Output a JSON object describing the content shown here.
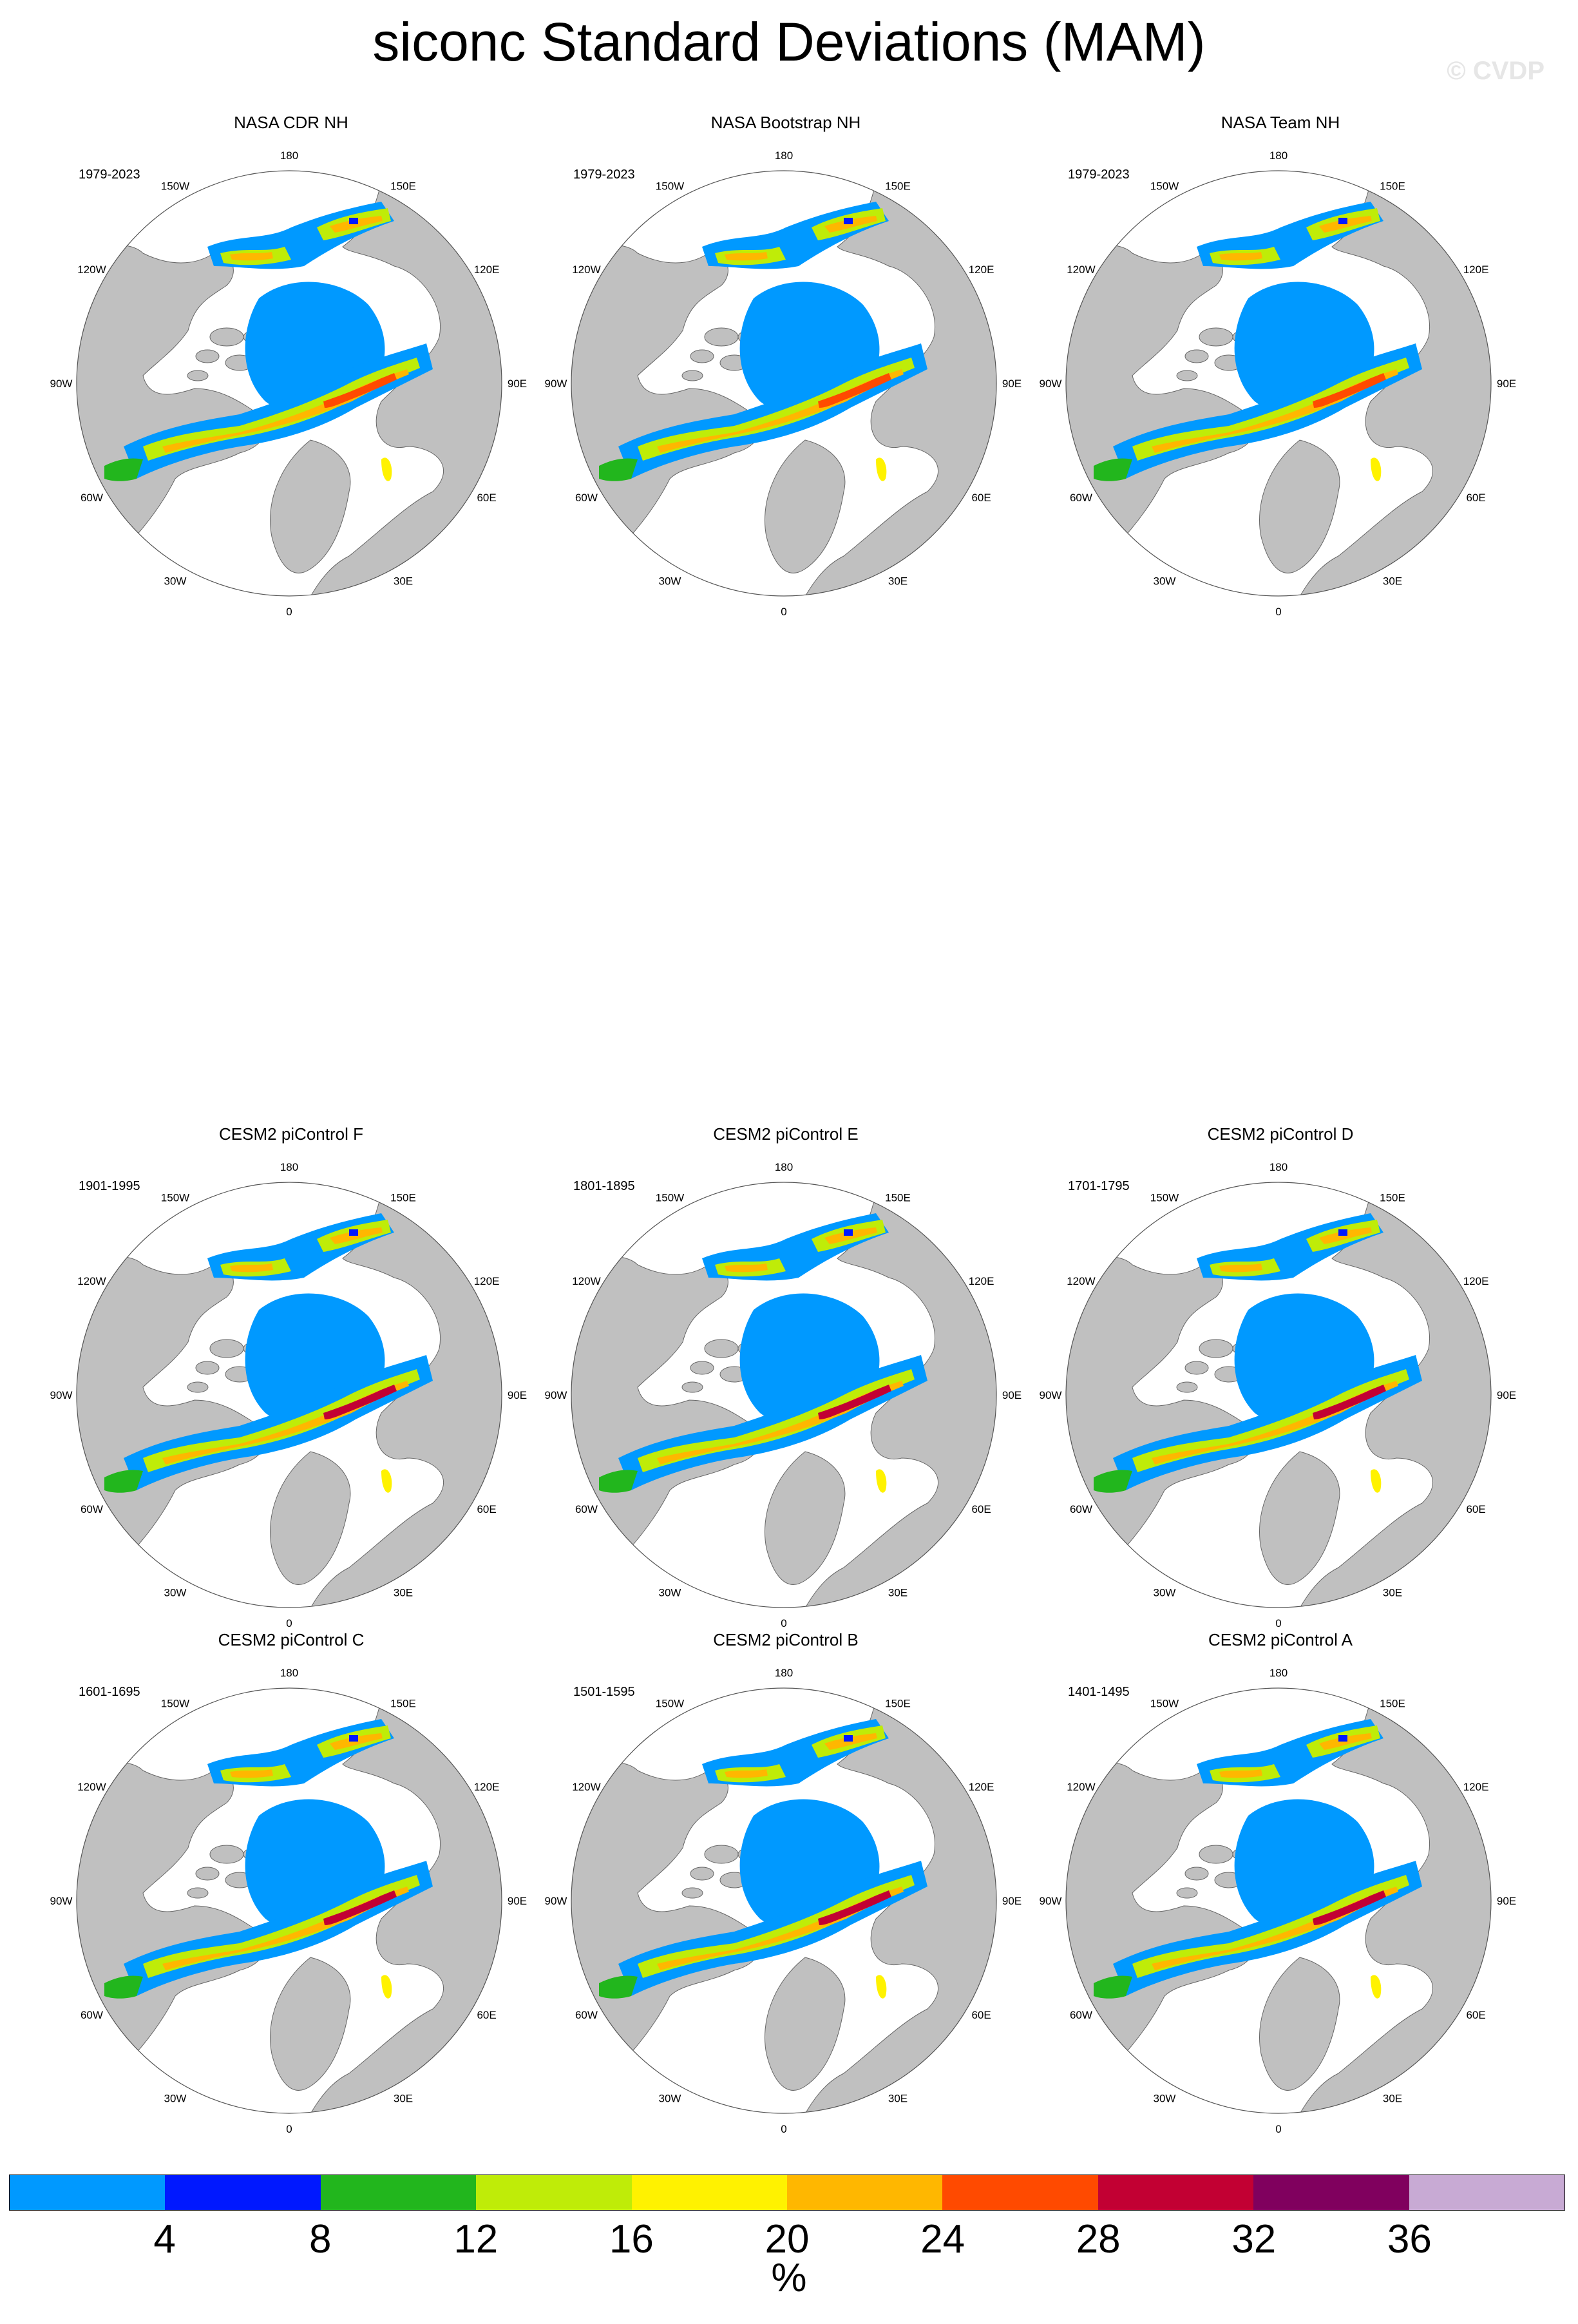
{
  "title": "siconc Standard Deviations (MAM)",
  "watermark": "© CVDP",
  "lon_labels": [
    "180",
    "150E",
    "120E",
    "90E",
    "60E",
    "30E",
    "0",
    "30W",
    "60W",
    "90W",
    "120W",
    "150W"
  ],
  "panels": [
    {
      "title": "NASA CDR NH",
      "years": "1979-2023"
    },
    {
      "title": "NASA Bootstrap NH",
      "years": "1979-2023"
    },
    {
      "title": "NASA Team NH",
      "years": "1979-2023"
    },
    {
      "title": "CESM2 piControl F",
      "years": "1901-1995"
    },
    {
      "title": "CESM2 piControl E",
      "years": "1801-1895"
    },
    {
      "title": "CESM2 piControl D",
      "years": "1701-1795"
    },
    {
      "title": "CESM2 piControl C",
      "years": "1601-1695"
    },
    {
      "title": "CESM2 piControl B",
      "years": "1501-1595"
    },
    {
      "title": "CESM2 piControl A",
      "years": "1401-1495"
    }
  ],
  "colorbar": {
    "colors": [
      "#0099ff",
      "#0018ff",
      "#22b61d",
      "#bfec08",
      "#fff200",
      "#ffb700",
      "#ff4a00",
      "#c20033",
      "#80005e",
      "#c8aad4"
    ],
    "ticks": [
      "4",
      "8",
      "12",
      "16",
      "20",
      "24",
      "28",
      "32",
      "36"
    ],
    "units": "%"
  },
  "map_colors": {
    "land": "#c0c0c0",
    "ocean": "#ffffff",
    "ice_low": "#0099ff"
  }
}
